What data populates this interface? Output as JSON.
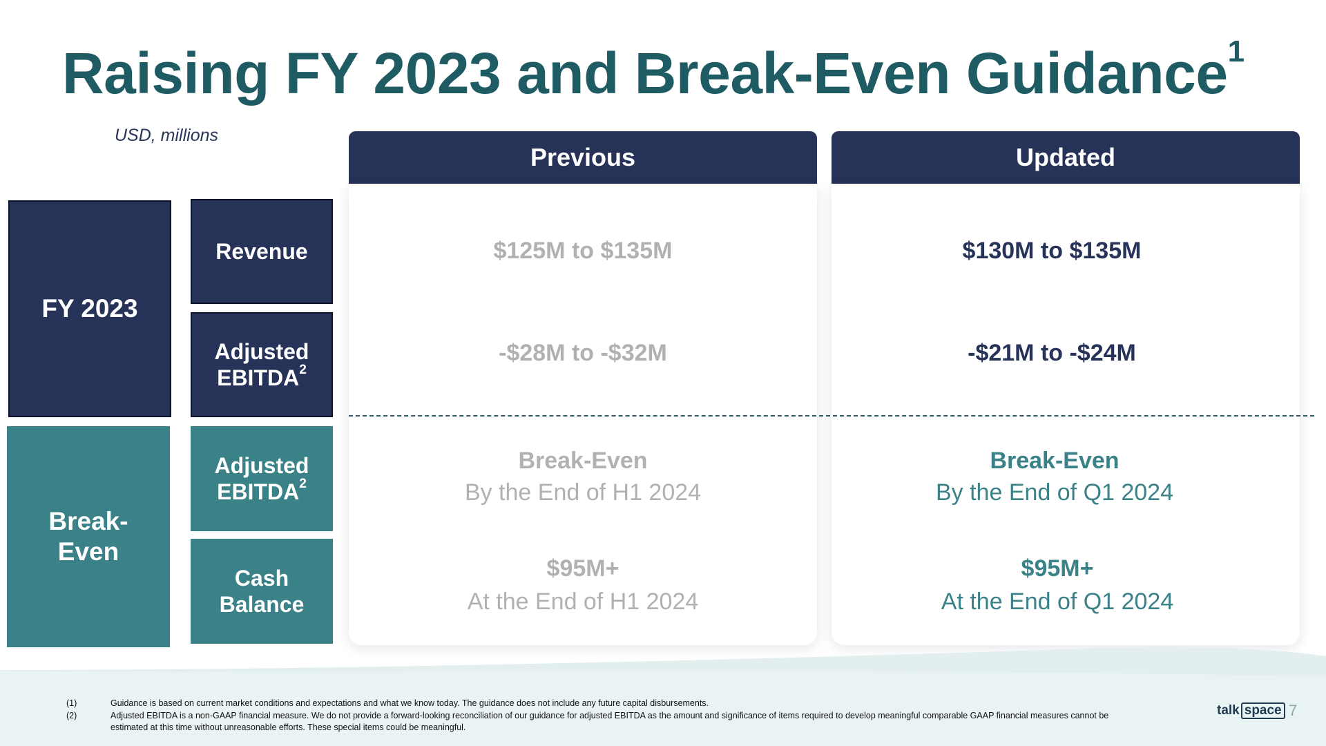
{
  "title": "Raising FY 2023 and Break-Even Guidance",
  "title_footnote": "1",
  "units": "USD, millions",
  "left_labels": {
    "fy2023": "FY 2023",
    "break_even_line1": "Break-",
    "break_even_line2": "Even",
    "revenue": "Revenue",
    "adjusted_ebitda_fy_line1": "Adjusted",
    "adjusted_ebitda_fy_line2": "EBITDA",
    "adjusted_ebitda_be_line1": "Adjusted",
    "adjusted_ebitda_be_line2": "EBITDA",
    "ebitda_footnote": "2",
    "cash_line1": "Cash",
    "cash_line2": "Balance"
  },
  "columns": {
    "previous": {
      "header": "Previous",
      "revenue": "$125M to $135M",
      "ebitda": "-$28M to -$32M",
      "breakeven_title": "Break-Even",
      "breakeven_sub": "By the End of H1 2024",
      "cash_title": "$95M+",
      "cash_sub": "At the End of H1 2024"
    },
    "updated": {
      "header": "Updated",
      "revenue": "$130M to $135M",
      "ebitda": "-$21M to -$24M",
      "breakeven_title": "Break-Even",
      "breakeven_sub": "By the End of Q1 2024",
      "cash_title": "$95M+",
      "cash_sub": "At the End of Q1 2024"
    }
  },
  "footnotes": [
    {
      "num": "(1)",
      "text": "Guidance is based on current market conditions and expectations and what we know today. The guidance does not include any future capital disbursements."
    },
    {
      "num": "(2)",
      "text": "Adjusted EBITDA is a non-GAAP financial measure. We do not provide a forward-looking reconciliation of our guidance for adjusted EBITDA as the amount and significance of items required to develop meaningful comparable GAAP financial measures cannot be estimated at this time without unreasonable efforts. These special items could be meaningful."
    }
  ],
  "logo": {
    "part1": "talk",
    "part2": "space"
  },
  "page_number": "7",
  "colors": {
    "navy": "#273259",
    "teal": "#3a8287",
    "title": "#1e5b63",
    "gray": "#b1b1b1"
  }
}
